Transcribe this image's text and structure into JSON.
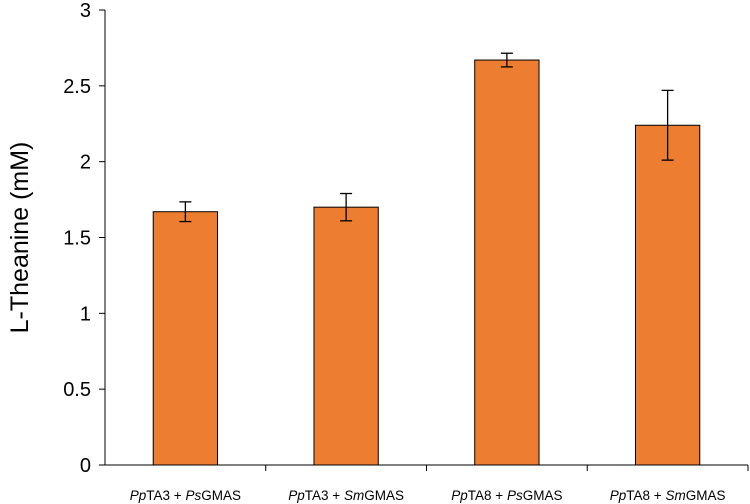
{
  "chart_data": {
    "type": "bar",
    "ylabel": "L-Theanine (mM)",
    "ylim": [
      0,
      3
    ],
    "yticks": [
      "0",
      "0.5",
      "1",
      "1.5",
      "2",
      "2.5",
      "3"
    ],
    "categories": [
      [
        {
          "t": "Pp",
          "i": true
        },
        {
          "t": "TA3 + ",
          "i": false
        },
        {
          "t": "Ps",
          "i": true
        },
        {
          "t": "GMAS",
          "i": false
        }
      ],
      [
        {
          "t": "Pp",
          "i": true
        },
        {
          "t": "TA3 + ",
          "i": false
        },
        {
          "t": "Sm",
          "i": true
        },
        {
          "t": "GMAS",
          "i": false
        }
      ],
      [
        {
          "t": "Pp",
          "i": true
        },
        {
          "t": "TA8 + ",
          "i": false
        },
        {
          "t": "Ps",
          "i": true
        },
        {
          "t": "GMAS",
          "i": false
        }
      ],
      [
        {
          "t": "Pp",
          "i": true
        },
        {
          "t": "TA8 + ",
          "i": false
        },
        {
          "t": "Sm",
          "i": true
        },
        {
          "t": "GMAS",
          "i": false
        }
      ]
    ],
    "values": [
      1.67,
      1.7,
      2.67,
      2.24
    ],
    "errors": [
      0.065,
      0.09,
      0.045,
      0.23
    ],
    "bar_color": "#ED7D31",
    "grid": false,
    "legend": "none"
  }
}
